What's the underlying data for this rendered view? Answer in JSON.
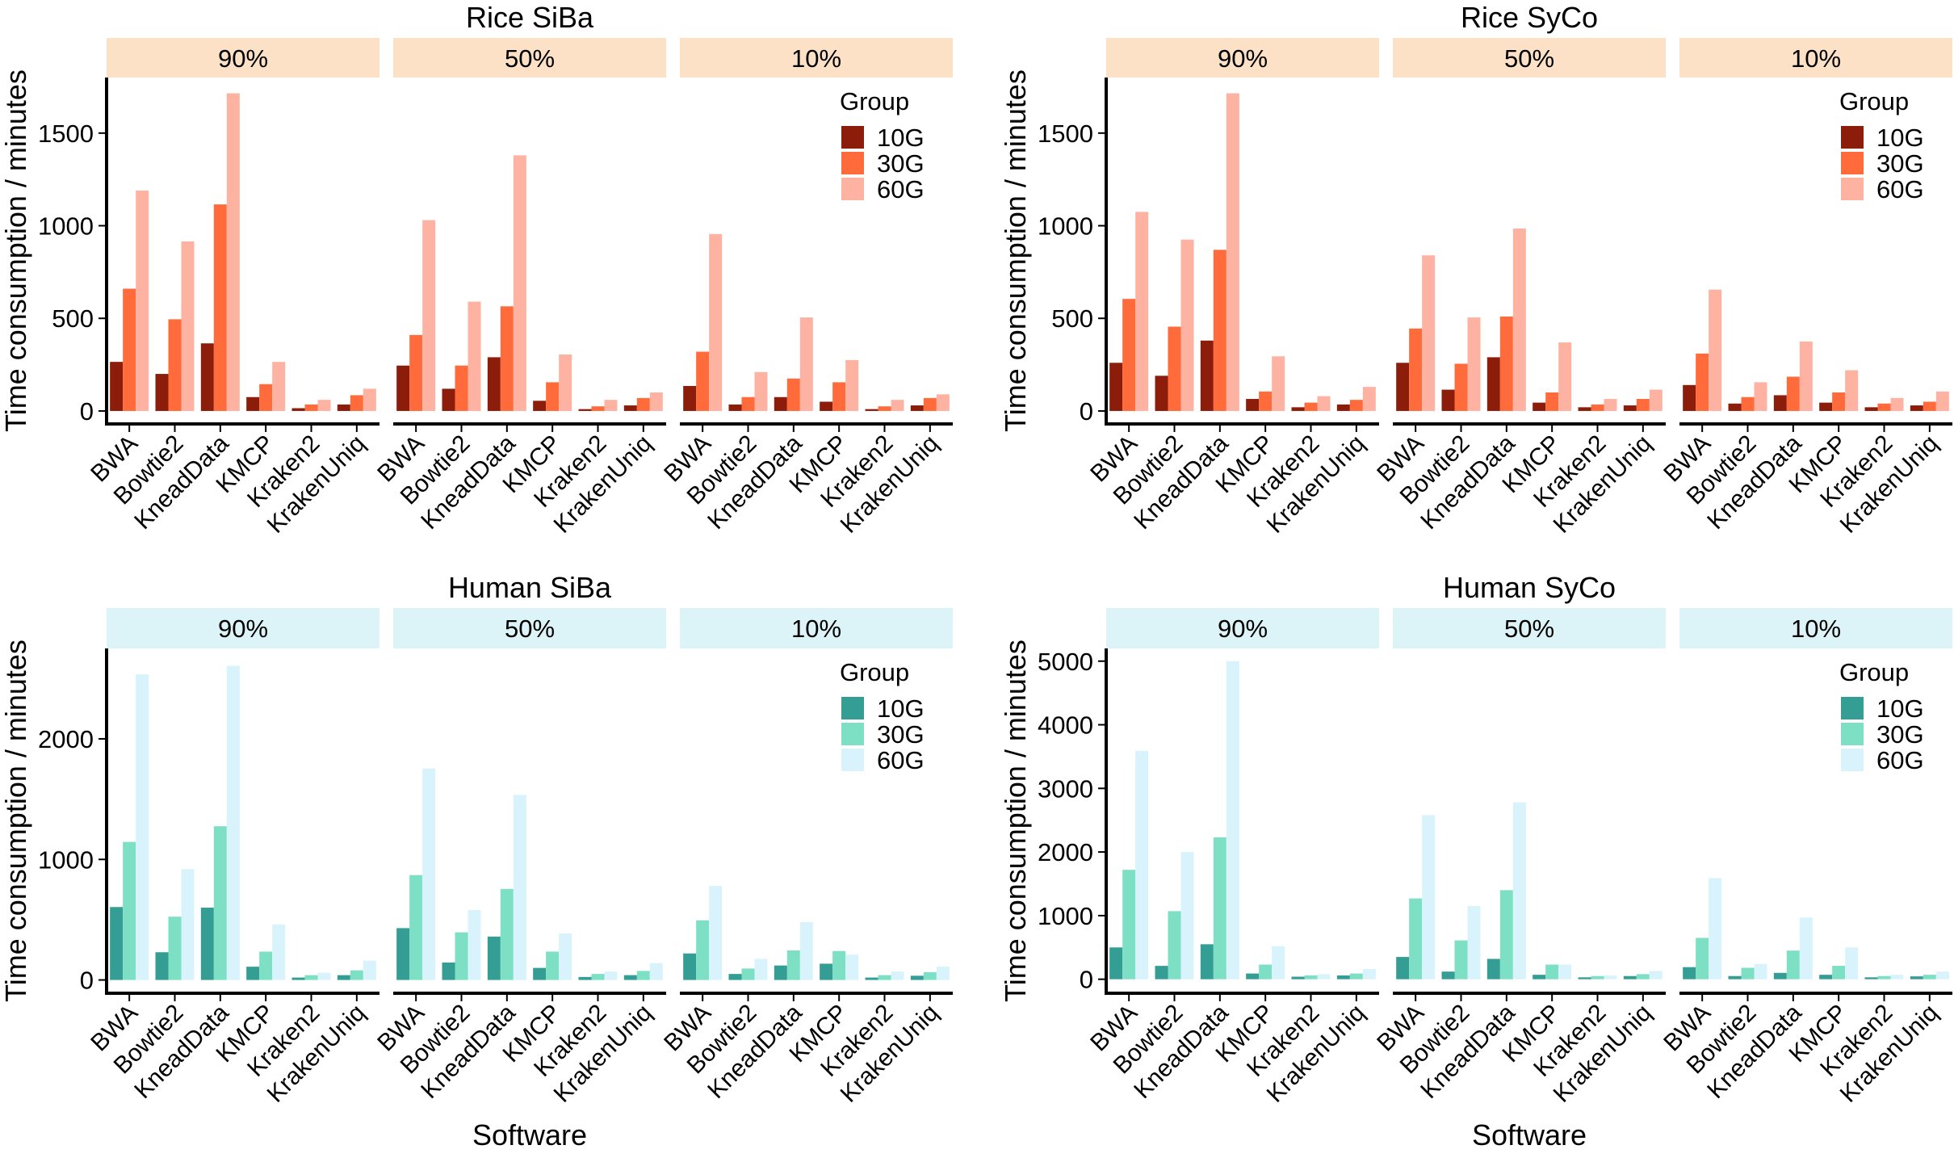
{
  "x_axis_label": "Software",
  "y_axis_label": "Time consumption / minutes",
  "legend_title": "Group",
  "group_names": [
    "10G",
    "30G",
    "60G"
  ],
  "facet_labels": [
    "90%",
    "50%",
    "10%"
  ],
  "palettes": {
    "rice": {
      "strip": "#fce1c7",
      "bars": [
        "#8b1d0a",
        "#ff6b3a",
        "#feb3a2"
      ]
    },
    "human": {
      "strip": "#dcf3f7",
      "bars": [
        "#349e95",
        "#7ddfc3",
        "#d8f3fb"
      ]
    }
  },
  "chart_data": [
    {
      "type": "bar",
      "title": "Rice SiBa",
      "palette": "rice",
      "categories": [
        "BWA",
        "Bowtie2",
        "KneadData",
        "KMCP",
        "Kraken2",
        "KrakenUniq"
      ],
      "ylim": [
        -70,
        1800
      ],
      "yticks": [
        0,
        500,
        1000,
        1500
      ],
      "ylabel": "Time consumption / minutes",
      "xlabel": "",
      "legend": "top-right",
      "facets": [
        {
          "label": "90%",
          "series": [
            {
              "name": "10G",
              "values": [
                265,
                200,
                365,
                75,
                15,
                35
              ]
            },
            {
              "name": "30G",
              "values": [
                660,
                495,
                1115,
                145,
                35,
                85
              ]
            },
            {
              "name": "60G",
              "values": [
                1190,
                915,
                1715,
                265,
                60,
                120
              ]
            }
          ]
        },
        {
          "label": "50%",
          "series": [
            {
              "name": "10G",
              "values": [
                245,
                120,
                290,
                55,
                10,
                30
              ]
            },
            {
              "name": "30G",
              "values": [
                410,
                245,
                565,
                155,
                25,
                70
              ]
            },
            {
              "name": "60G",
              "values": [
                1030,
                590,
                1380,
                305,
                60,
                100
              ]
            }
          ]
        },
        {
          "label": "10%",
          "series": [
            {
              "name": "10G",
              "values": [
                135,
                35,
                75,
                50,
                10,
                30
              ]
            },
            {
              "name": "30G",
              "values": [
                320,
                75,
                175,
                155,
                25,
                70
              ]
            },
            {
              "name": "60G",
              "values": [
                955,
                210,
                505,
                275,
                60,
                90
              ]
            }
          ]
        }
      ]
    },
    {
      "type": "bar",
      "title": "Rice SyCo",
      "palette": "rice",
      "categories": [
        "BWA",
        "Bowtie2",
        "KneadData",
        "KMCP",
        "Kraken2",
        "KrakenUniq"
      ],
      "ylim": [
        -70,
        1800
      ],
      "yticks": [
        0,
        500,
        1000,
        1500
      ],
      "ylabel": "Time consumption / minutes",
      "xlabel": "",
      "legend": "top-right",
      "facets": [
        {
          "label": "90%",
          "series": [
            {
              "name": "10G",
              "values": [
                260,
                190,
                380,
                65,
                20,
                35
              ]
            },
            {
              "name": "30G",
              "values": [
                605,
                455,
                870,
                105,
                45,
                60
              ]
            },
            {
              "name": "60G",
              "values": [
                1075,
                925,
                1715,
                295,
                80,
                130
              ]
            }
          ]
        },
        {
          "label": "50%",
          "series": [
            {
              "name": "10G",
              "values": [
                260,
                115,
                290,
                45,
                20,
                30
              ]
            },
            {
              "name": "30G",
              "values": [
                445,
                255,
                510,
                100,
                35,
                65
              ]
            },
            {
              "name": "60G",
              "values": [
                840,
                505,
                985,
                370,
                65,
                115
              ]
            }
          ]
        },
        {
          "label": "10%",
          "series": [
            {
              "name": "10G",
              "values": [
                140,
                40,
                85,
                45,
                20,
                30
              ]
            },
            {
              "name": "30G",
              "values": [
                310,
                75,
                185,
                100,
                40,
                50
              ]
            },
            {
              "name": "60G",
              "values": [
                655,
                155,
                375,
                220,
                70,
                105
              ]
            }
          ]
        }
      ]
    },
    {
      "type": "bar",
      "title": "Human SiBa",
      "palette": "human",
      "categories": [
        "BWA",
        "Bowtie2",
        "KneadData",
        "KMCP",
        "Kraken2",
        "KrakenUniq"
      ],
      "ylim": [
        -110,
        2750
      ],
      "yticks": [
        0,
        1000,
        2000
      ],
      "ylabel": "Time consumption / minutes",
      "xlabel": "Software",
      "legend": "top-right",
      "facets": [
        {
          "label": "90%",
          "series": [
            {
              "name": "10G",
              "values": [
                605,
                230,
                600,
                110,
                20,
                40
              ]
            },
            {
              "name": "30G",
              "values": [
                1145,
                525,
                1275,
                235,
                40,
                80
              ]
            },
            {
              "name": "60G",
              "values": [
                2535,
                920,
                2605,
                460,
                60,
                160
              ]
            }
          ]
        },
        {
          "label": "50%",
          "series": [
            {
              "name": "10G",
              "values": [
                430,
                145,
                360,
                100,
                25,
                40
              ]
            },
            {
              "name": "30G",
              "values": [
                870,
                395,
                755,
                235,
                50,
                75
              ]
            },
            {
              "name": "60G",
              "values": [
                1755,
                580,
                1535,
                385,
                70,
                140
              ]
            }
          ]
        },
        {
          "label": "10%",
          "series": [
            {
              "name": "10G",
              "values": [
                220,
                50,
                120,
                135,
                20,
                35
              ]
            },
            {
              "name": "30G",
              "values": [
                495,
                95,
                245,
                240,
                40,
                65
              ]
            },
            {
              "name": "60G",
              "values": [
                780,
                175,
                480,
                210,
                70,
                110
              ]
            }
          ]
        }
      ]
    },
    {
      "type": "bar",
      "title": "Human SyCo",
      "palette": "human",
      "categories": [
        "BWA",
        "Bowtie2",
        "KneadData",
        "KMCP",
        "Kraken2",
        "KrakenUniq"
      ],
      "ylim": [
        -220,
        5200
      ],
      "yticks": [
        0,
        1000,
        2000,
        3000,
        4000,
        5000
      ],
      "ylabel": "Time consumption / minutes",
      "xlabel": "Software",
      "legend": "top-right",
      "facets": [
        {
          "label": "90%",
          "series": [
            {
              "name": "10G",
              "values": [
                500,
                210,
                550,
                90,
                40,
                60
              ]
            },
            {
              "name": "30G",
              "values": [
                1720,
                1070,
                2230,
                230,
                60,
                90
              ]
            },
            {
              "name": "60G",
              "values": [
                3590,
                2000,
                5000,
                520,
                80,
                160
              ]
            }
          ]
        },
        {
          "label": "50%",
          "series": [
            {
              "name": "10G",
              "values": [
                350,
                120,
                320,
                70,
                30,
                50
              ]
            },
            {
              "name": "30G",
              "values": [
                1270,
                610,
                1400,
                230,
                50,
                80
              ]
            },
            {
              "name": "60G",
              "values": [
                2580,
                1150,
                2780,
                230,
                60,
                130
              ]
            }
          ]
        },
        {
          "label": "10%",
          "series": [
            {
              "name": "10G",
              "values": [
                190,
                50,
                100,
                70,
                30,
                45
              ]
            },
            {
              "name": "30G",
              "values": [
                650,
                180,
                450,
                210,
                50,
                70
              ]
            },
            {
              "name": "60G",
              "values": [
                1590,
                240,
                970,
                500,
                70,
                120
              ]
            }
          ]
        }
      ]
    }
  ]
}
